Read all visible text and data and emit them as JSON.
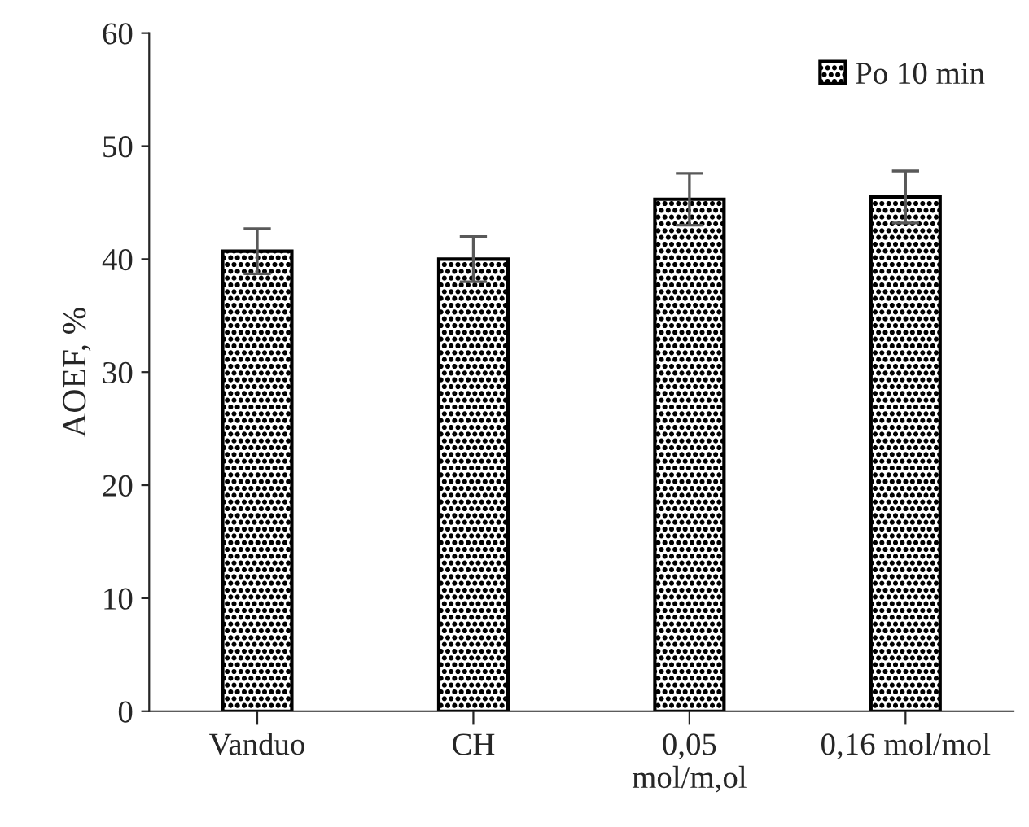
{
  "chart_data": {
    "type": "bar",
    "ylabel": "AOEF, %",
    "categories": [
      "Vanduo",
      "CH",
      "0,05\nmol/m,ol",
      "0,16 mol/mol"
    ],
    "series": [
      {
        "name": "Po 10 min",
        "color": "#000000",
        "values": [
          40.7,
          40.0,
          45.3,
          45.5
        ],
        "errors": [
          2.0,
          2.0,
          2.3,
          2.3
        ]
      }
    ],
    "ylim": [
      0,
      60
    ],
    "yticks": [
      0,
      10,
      20,
      30,
      40,
      50,
      60
    ],
    "grid": false,
    "legend": "top right"
  }
}
